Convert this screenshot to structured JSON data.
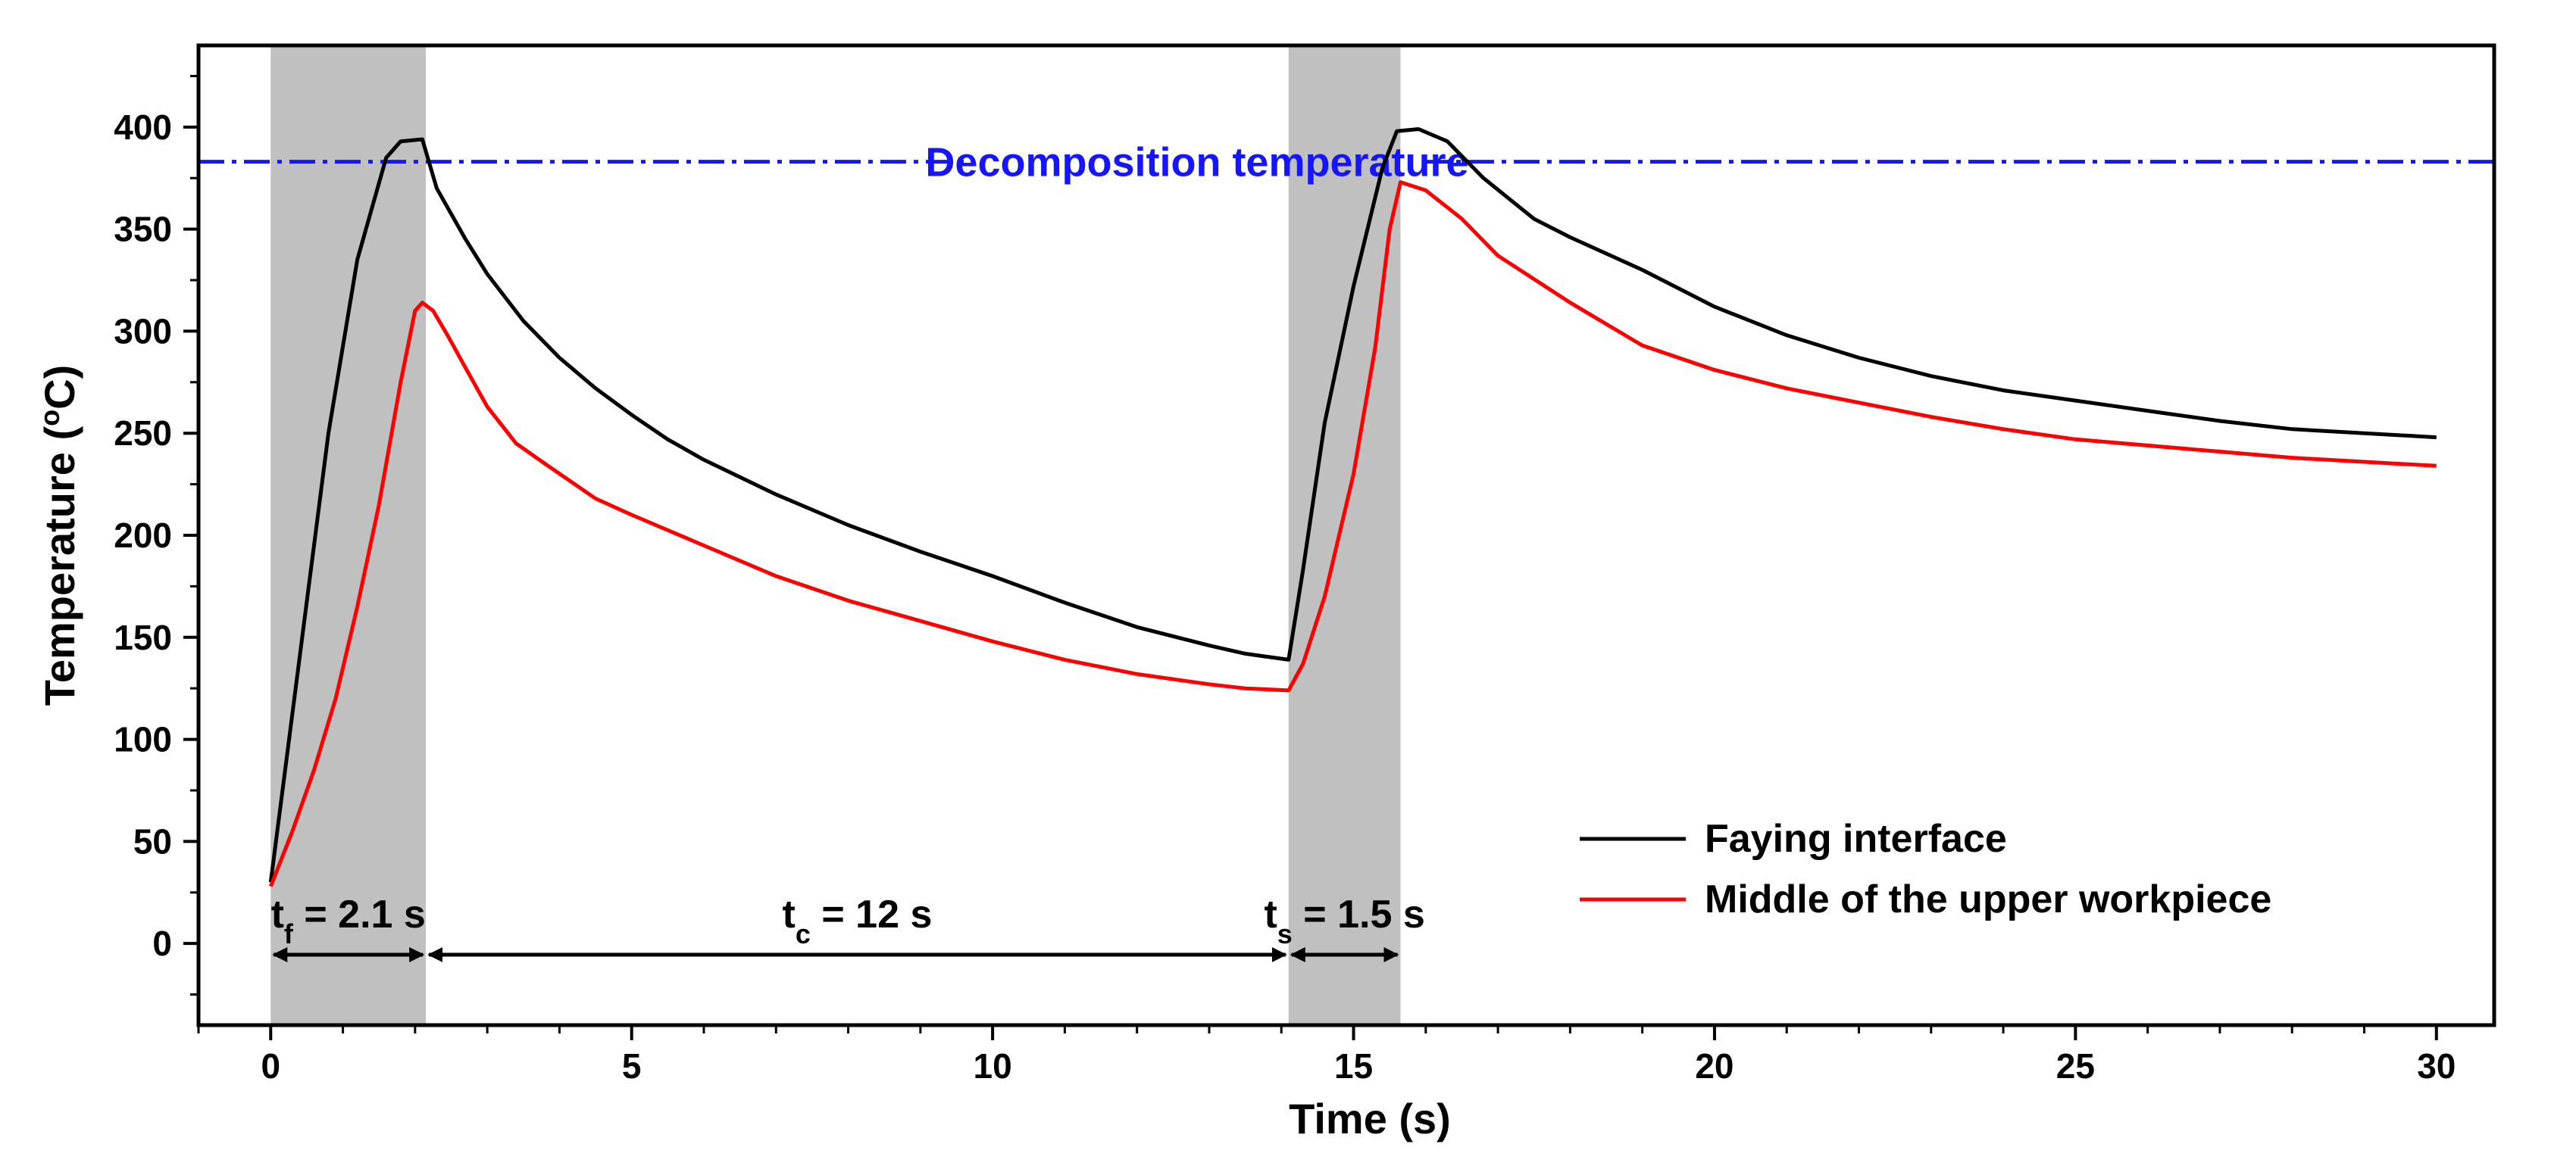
{
  "chart_data": {
    "type": "line",
    "xlabel": "Time (s)",
    "ylabel": {
      "prefix": "Temperature (",
      "degree": "o",
      "suffix": "C)"
    },
    "xlim": [
      -1,
      30.8
    ],
    "ylim": [
      -40,
      440
    ],
    "x_ticks": [
      0,
      5,
      10,
      15,
      20,
      25,
      30
    ],
    "y_ticks": [
      0,
      50,
      100,
      150,
      200,
      250,
      300,
      350,
      400
    ],
    "x_minor_step": 1,
    "y_minor_step": 25,
    "grid": false,
    "legend_position": "bottom-right",
    "shaded_regions": [
      {
        "name": "friction-stage",
        "x": [
          0,
          2.15
        ]
      },
      {
        "name": "stir-stage",
        "x": [
          14.1,
          15.65
        ]
      }
    ],
    "reference_line": {
      "label": "Decomposition temperature",
      "y": 383,
      "color": "#1515ff",
      "style": "dash-dot"
    },
    "annotations": [
      {
        "name": "tf",
        "main": "t",
        "sub": "f",
        "rest": " = 2.1 s",
        "x_start": 0,
        "x_end": 2.15
      },
      {
        "name": "tc",
        "main": "t",
        "sub": "c",
        "rest": " = 12 s",
        "x_start": 2.15,
        "x_end": 14.1
      },
      {
        "name": "ts",
        "main": "t",
        "sub": "s",
        "rest": " = 1.5 s",
        "x_start": 14.1,
        "x_end": 15.65
      }
    ],
    "series": [
      {
        "name": "Faying interface",
        "color": "#000000",
        "x": [
          0,
          0.4,
          0.8,
          1.2,
          1.6,
          1.8,
          2.1,
          2.3,
          2.7,
          3,
          3.5,
          4,
          4.5,
          5,
          5.5,
          6,
          7,
          8,
          9,
          10,
          11,
          12,
          13,
          13.5,
          14.1,
          14.3,
          14.6,
          15,
          15.4,
          15.6,
          15.9,
          16.3,
          16.8,
          17.5,
          18,
          19,
          20,
          21,
          22,
          23,
          24,
          25,
          26,
          27,
          28,
          29,
          30
        ],
        "values": [
          30,
          140,
          250,
          335,
          385,
          393,
          394,
          370,
          345,
          328,
          305,
          287,
          272,
          259,
          247,
          237,
          220,
          205,
          192,
          180,
          167,
          155,
          146,
          142,
          139,
          183,
          255,
          322,
          380,
          398,
          399,
          393,
          375,
          355,
          346,
          330,
          312,
          298,
          287,
          278,
          271,
          266,
          261,
          256,
          252,
          250,
          248
        ]
      },
      {
        "name": "Middle of the upper workpiece",
        "color": "#ff0000",
        "x": [
          0,
          0.3,
          0.6,
          0.9,
          1.2,
          1.5,
          1.8,
          2,
          2.1,
          2.25,
          2.45,
          2.7,
          3,
          3.4,
          3.8,
          4.5,
          5,
          6,
          7,
          8,
          9,
          10,
          11,
          12,
          13,
          13.5,
          14.1,
          14.3,
          14.6,
          15,
          15.3,
          15.5,
          15.65,
          16,
          16.5,
          17,
          18,
          19,
          20,
          21,
          22,
          23,
          24,
          25,
          26,
          27,
          28,
          29,
          30
        ],
        "values": [
          28,
          55,
          85,
          120,
          165,
          215,
          275,
          310,
          314,
          310,
          298,
          282,
          263,
          245,
          235,
          218,
          210,
          195,
          180,
          168,
          158,
          148,
          139,
          132,
          127,
          125,
          124,
          137,
          170,
          230,
          292,
          350,
          373,
          369,
          355,
          337,
          314,
          293,
          281,
          272,
          265,
          258,
          252,
          247,
          244,
          241,
          238,
          236,
          234
        ]
      }
    ]
  }
}
